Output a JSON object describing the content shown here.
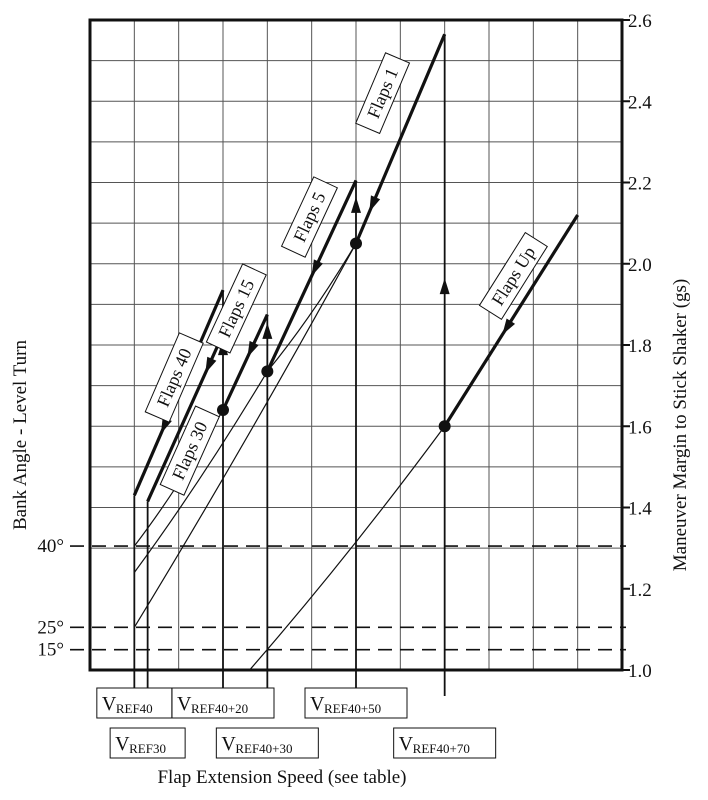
{
  "chart_data": {
    "type": "line",
    "title": "",
    "xlabel": "Flap Extension Speed (see table)",
    "ylabel_left": "Bank Angle - Level Turn",
    "ylabel_right": "Maneuver Margin to Stick Shaker (gs)",
    "right_axis": {
      "ylim": [
        1.0,
        2.6
      ],
      "ticks": [
        "1.0",
        "1.2",
        "1.4",
        "1.6",
        "1.8",
        "2.0",
        "2.2",
        "2.4",
        "2.6"
      ],
      "tick_values": [
        1.0,
        1.2,
        1.4,
        1.6,
        1.8,
        2.0,
        2.2,
        2.4,
        2.6
      ]
    },
    "left_axis": {
      "ticks": [
        {
          "label": "40°",
          "g": 1.305
        },
        {
          "label": "25°",
          "g": 1.105
        },
        {
          "label": "15°",
          "g": 1.05
        }
      ]
    },
    "xlim": [
      0,
      12
    ],
    "grid": true,
    "speed_labels": [
      {
        "main": "V",
        "sub": "REF40",
        "x": 1.0,
        "row": 1
      },
      {
        "main": "V",
        "sub": "REF30",
        "x": 1.3,
        "row": 2
      },
      {
        "main": "V",
        "sub": "REF40+20",
        "x": 3.0,
        "row": 1
      },
      {
        "main": "V",
        "sub": "REF40+30",
        "x": 4.0,
        "row": 2
      },
      {
        "main": "V",
        "sub": "REF40+50",
        "x": 6.0,
        "row": 1
      },
      {
        "main": "V",
        "sub": "REF40+70",
        "x": 8.0,
        "row": 2
      }
    ],
    "series": [
      {
        "name": "Flaps 40",
        "thin": [
          [
            1.0,
            1.305
          ],
          [
            3.0,
            1.64
          ]
        ],
        "bold": [
          [
            1.0,
            1.43
          ],
          [
            3.0,
            1.935
          ]
        ],
        "label_at": [
          1.9,
          1.72
        ],
        "arrow_at": [
          1.6,
          1.55
        ]
      },
      {
        "name": "Flaps 30",
        "thin": [
          [
            1.0,
            1.24
          ],
          [
            4.0,
            1.735
          ]
        ],
        "bold": [
          [
            1.3,
            1.415
          ],
          [
            3.3,
            1.9
          ]
        ],
        "label_at": [
          2.25,
          1.54
        ],
        "arrow_at": [
          2.6,
          1.73
        ]
      },
      {
        "name": "Flaps 15",
        "thin": [
          [
            1.0,
            1.105
          ],
          [
            6.0,
            2.05
          ]
        ],
        "bold": [
          [
            3.0,
            1.64
          ],
          [
            4.0,
            1.875
          ]
        ],
        "label_at": [
          3.3,
          1.89
        ],
        "arrow_at": [
          3.55,
          1.76
        ]
      },
      {
        "name": "Flaps 5",
        "thin": [
          [
            4.0,
            1.735
          ],
          [
            6.0,
            2.05
          ]
        ],
        "bold": [
          [
            4.0,
            1.735
          ],
          [
            6.0,
            2.205
          ]
        ],
        "label_at": [
          4.95,
          2.115
        ],
        "arrow_at": [
          5.0,
          1.97
        ]
      },
      {
        "name": "Flaps 1",
        "thin": [],
        "bold": [
          [
            6.0,
            2.05
          ],
          [
            8.0,
            2.565
          ]
        ],
        "label_at": [
          6.6,
          2.42
        ],
        "arrow_at": [
          6.3,
          2.14
        ]
      },
      {
        "name": "Flaps Up",
        "thin": [
          [
            3.6,
            1.0
          ],
          [
            8.0,
            1.6
          ]
        ],
        "bold": [
          [
            8.0,
            1.6
          ],
          [
            11.0,
            2.12
          ]
        ],
        "label_at": [
          9.55,
          1.97
        ],
        "arrow_at": [
          9.3,
          1.78
        ]
      }
    ],
    "points": [
      {
        "series": "Flaps 40",
        "x": 3.0,
        "y": 1.64
      },
      {
        "series": "Flaps 30",
        "x": 4.0,
        "y": 1.735
      },
      {
        "series": "Flaps 15",
        "x": 6.0,
        "y": 2.05
      },
      {
        "series": "Flaps Up",
        "x": 8.0,
        "y": 1.6
      }
    ],
    "drop_lines": [
      {
        "x": 1.0,
        "y_top": 1.43
      },
      {
        "x": 1.3,
        "y_top": 1.415
      },
      {
        "x": 3.0,
        "y_top": 1.935,
        "arrow_y": 1.79
      },
      {
        "x": 4.0,
        "y_top": 1.875,
        "arrow_y": 1.83
      },
      {
        "x": 6.0,
        "y_top": 2.205,
        "arrow_y": 2.14
      },
      {
        "x": 8.0,
        "y_top": 2.565,
        "arrow_y": 1.94
      }
    ]
  }
}
